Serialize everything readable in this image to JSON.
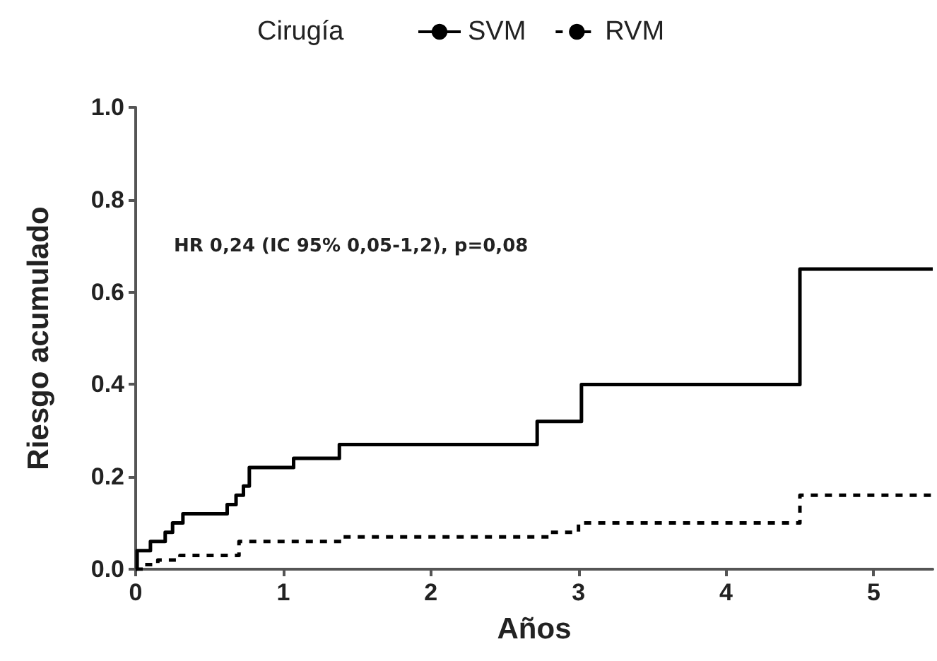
{
  "chart_data": {
    "type": "step",
    "xlabel": "Años",
    "ylabel": "Riesgo acumulado",
    "legend_title": "Cirugía",
    "legend": "top",
    "grid": false,
    "marker": "none",
    "annotations": [
      "HR 0,24 (IC 95% 0,05-1,2), p=0,08"
    ],
    "xlim": [
      0,
      5.4
    ],
    "xticks": [
      0,
      1,
      2,
      3,
      4,
      5
    ],
    "ylim": [
      0,
      1
    ],
    "yticks": [
      {
        "value": 0,
        "label": "0.0"
      },
      {
        "value": 0.2,
        "label": "0.2"
      },
      {
        "value": 0.4,
        "label": "0.4"
      },
      {
        "value": 0.6,
        "label": "0.6"
      },
      {
        "value": 0.8,
        "label": "0.8"
      },
      {
        "value": 1,
        "label": "1.0"
      }
    ],
    "series": [
      {
        "name": "SVM",
        "color": "#000000",
        "line_style": "solid",
        "x": [
          0,
          0.01,
          0.1,
          0.2,
          0.25,
          0.32,
          0.62,
          0.68,
          0.73,
          0.77,
          1.07,
          1.38,
          2.72,
          3.02,
          4.5,
          5.4
        ],
        "values": [
          0,
          0.04,
          0.06,
          0.08,
          0.1,
          0.12,
          0.14,
          0.16,
          0.18,
          0.22,
          0.24,
          0.27,
          0.32,
          0.4,
          0.65,
          0.65
        ]
      },
      {
        "name": "RVM",
        "color": "#000000",
        "line_style": "dashed",
        "x": [
          0,
          0.05,
          0.15,
          0.3,
          0.7,
          1.4,
          2.8,
          3.0,
          4.5,
          5.4
        ],
        "values": [
          0,
          0.01,
          0.02,
          0.03,
          0.06,
          0.07,
          0.08,
          0.1,
          0.16,
          0.16
        ]
      }
    ]
  }
}
